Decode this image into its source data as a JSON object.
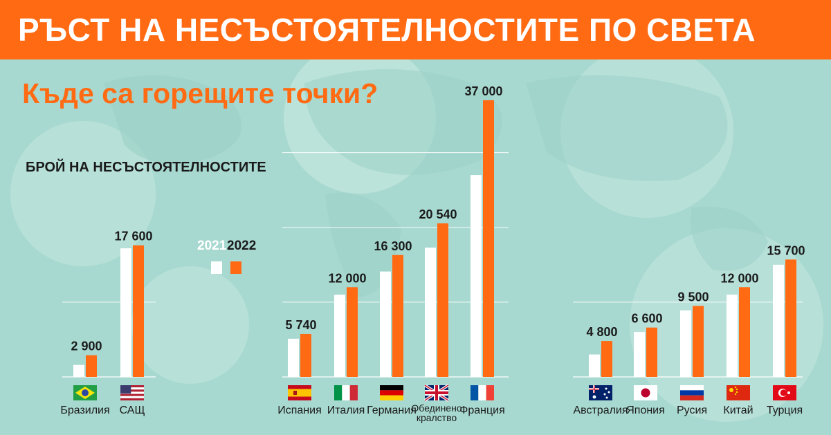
{
  "header": {
    "title": "РЪСТ НА НЕСЪСТОЯТЕЛНОСТИТЕ ПО СВЕТА"
  },
  "subtitle": "Къде са горещите точки?",
  "metric_label": "БРОЙ НА НЕСЪСТОЯТЕЛНОСТИТЕ",
  "colors": {
    "accent": "#ff6a13",
    "background": "#a8d9d0",
    "year_2021": "#ffffff",
    "year_2022": "#ff6a13"
  },
  "chart_data": {
    "type": "bar",
    "ylim": [
      0,
      40000
    ],
    "legend": {
      "placement": "left-center",
      "entries": [
        {
          "name": "2021",
          "color": "#ffffff"
        },
        {
          "name": "2022",
          "color": "#ff6a13"
        }
      ]
    },
    "groups": [
      {
        "countries": [
          {
            "name": "Бразилия",
            "flag": "brazil-flag",
            "v2021": 1600,
            "v2022": 2900,
            "label": "2 900"
          },
          {
            "name": "САЩ",
            "flag": "usa-flag",
            "v2021": 17200,
            "v2022": 17600,
            "label": "17 600"
          }
        ]
      },
      {
        "countries": [
          {
            "name": "Испания",
            "flag": "spain-flag",
            "v2021": 5100,
            "v2022": 5740,
            "label": "5 740"
          },
          {
            "name": "Италия",
            "flag": "italy-flag",
            "v2021": 11000,
            "v2022": 12000,
            "label": "12 000"
          },
          {
            "name": "Германия",
            "flag": "germany-flag",
            "v2021": 14100,
            "v2022": 16300,
            "label": "16 300"
          },
          {
            "name": "Обединено кралство",
            "flag": "uk-flag",
            "v2021": 17300,
            "v2022": 20540,
            "label": "20 540"
          },
          {
            "name": "Франция",
            "flag": "france-flag",
            "v2021": 27000,
            "v2022": 37000,
            "label": "37 000"
          }
        ]
      },
      {
        "countries": [
          {
            "name": "Австралия",
            "flag": "australia-flag",
            "v2021": 3000,
            "v2022": 4800,
            "label": "4 800"
          },
          {
            "name": "Япония",
            "flag": "japan-flag",
            "v2021": 6000,
            "v2022": 6600,
            "label": "6 600"
          },
          {
            "name": "Русия",
            "flag": "russia-flag",
            "v2021": 8900,
            "v2022": 9500,
            "label": "9 500"
          },
          {
            "name": "Китай",
            "flag": "china-flag",
            "v2021": 11000,
            "v2022": 12000,
            "label": "12 000"
          },
          {
            "name": "Турция",
            "flag": "turkey-flag",
            "v2021": 15000,
            "v2022": 15700,
            "label": "15 700"
          }
        ]
      }
    ]
  }
}
